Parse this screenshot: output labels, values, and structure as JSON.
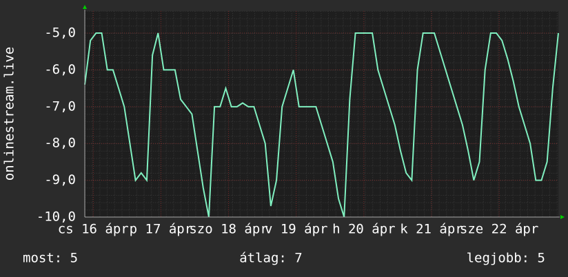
{
  "chart_data": {
    "type": "line",
    "y_label": "onlinestream.live",
    "x": [
      0,
      2,
      4,
      6,
      8,
      10,
      12,
      14,
      16,
      18,
      20,
      22,
      24,
      26,
      28,
      30,
      32,
      34,
      36,
      38,
      40,
      42,
      44,
      46,
      48,
      50,
      52,
      54,
      56,
      58,
      60,
      62,
      64,
      66,
      68,
      70,
      72,
      74,
      76,
      78,
      80,
      82,
      84,
      86,
      88,
      90,
      92,
      94,
      96,
      98,
      100,
      102,
      104,
      106,
      108,
      110,
      112,
      114,
      116,
      118,
      120,
      122,
      124,
      126,
      128,
      130,
      132,
      134,
      136,
      138,
      140,
      142,
      144,
      146,
      148,
      150,
      152,
      154,
      156,
      158,
      160,
      162,
      164,
      166,
      168
    ],
    "series": [
      {
        "color": "#80f0c0",
        "values": [
          -6.4,
          -5.2,
          -5,
          -5,
          -6,
          -6,
          -6.5,
          -7,
          -8,
          -9,
          -8.8,
          -9,
          -5.6,
          -5,
          -6,
          -6,
          -6,
          -6.8,
          -7,
          -7.2,
          -8.2,
          -9.2,
          -10,
          -7,
          -7,
          -6.5,
          -7,
          -7,
          -6.9,
          -7,
          -7,
          -7.5,
          -8,
          -9.7,
          -9,
          -7,
          -6.5,
          -6,
          -7,
          -7,
          -7,
          -7,
          -7.5,
          -8,
          -8.5,
          -9.5,
          -10,
          -6.8,
          -5,
          -5,
          -5,
          -5,
          -6,
          -6.5,
          -7,
          -7.5,
          -8.2,
          -8.8,
          -9,
          -6,
          -5,
          -5,
          -5,
          -5.5,
          -6,
          -6.5,
          -7,
          -7.5,
          -8.2,
          -9,
          -8.5,
          -6,
          -5,
          -5,
          -5.2,
          -5.7,
          -6.3,
          -7,
          -7.5,
          -8,
          -9,
          -9,
          -8.5,
          -6.5,
          -5
        ]
      }
    ],
    "xlim": [
      0,
      168
    ],
    "xticks": [
      {
        "value": 3,
        "label": "cs 16 ápr"
      },
      {
        "value": 27,
        "label": "p 17 ápr"
      },
      {
        "value": 51,
        "label": "szo 18 ápr"
      },
      {
        "value": 75,
        "label": "v 19 ápr"
      },
      {
        "value": 99,
        "label": "h 20 ápr"
      },
      {
        "value": 123,
        "label": "k 21 ápr"
      },
      {
        "value": 147,
        "label": "sze 22 ápr"
      }
    ],
    "ylim": [
      -10,
      -4.4
    ],
    "yticks": [
      {
        "value": -10,
        "label": "-10,0"
      },
      {
        "value": -9,
        "label": "-9,0"
      },
      {
        "value": -8,
        "label": "-8,0"
      },
      {
        "value": -7,
        "label": "-7,0"
      },
      {
        "value": -6,
        "label": "-6,0"
      },
      {
        "value": -5,
        "label": "-5,0"
      }
    ],
    "grid": true,
    "legend": [
      "most: 5",
      "átlag: 7",
      "legjobb: 5"
    ]
  }
}
